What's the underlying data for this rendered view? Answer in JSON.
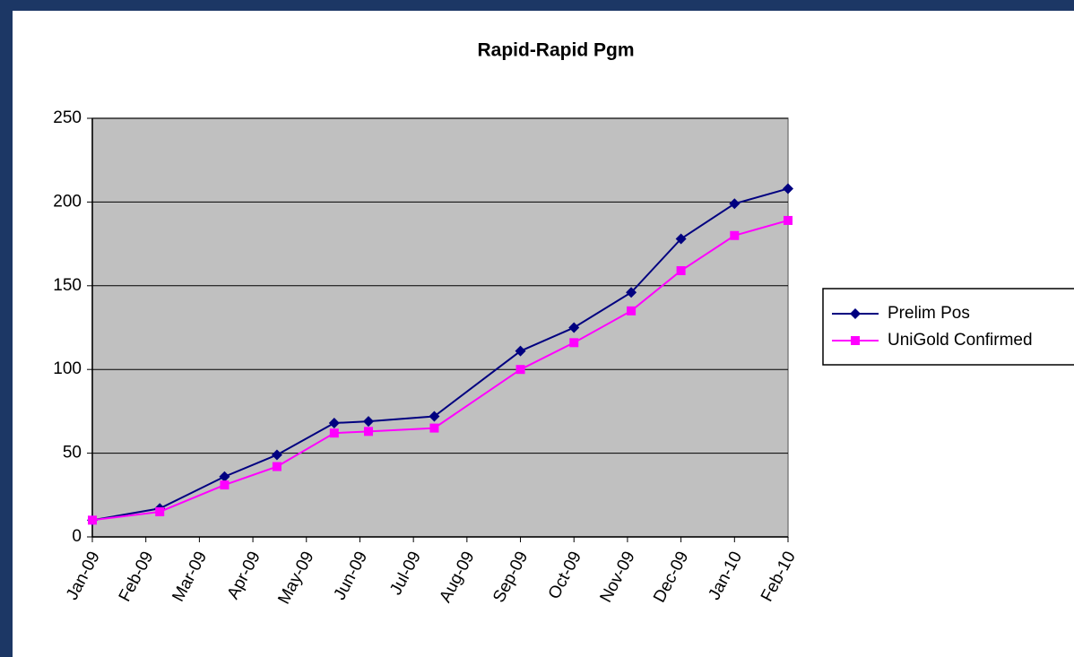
{
  "chart_data": {
    "type": "line",
    "title": "Rapid-Rapid Pgm",
    "x": [
      0,
      1.26,
      2.47,
      3.45,
      4.52,
      5.16,
      6.39,
      8,
      9,
      10.07,
      11,
      12,
      13
    ],
    "xlim": [
      0,
      13
    ],
    "xticks": [
      {
        "value": 0,
        "label": "Jan-09"
      },
      {
        "value": 1,
        "label": "Feb-09"
      },
      {
        "value": 2,
        "label": "Mar-09"
      },
      {
        "value": 3,
        "label": "Apr-09"
      },
      {
        "value": 4,
        "label": "May-09"
      },
      {
        "value": 5,
        "label": "Jun-09"
      },
      {
        "value": 6,
        "label": "Jul-09"
      },
      {
        "value": 7,
        "label": "Aug-09"
      },
      {
        "value": 8,
        "label": "Sep-09"
      },
      {
        "value": 9,
        "label": "Oct-09"
      },
      {
        "value": 10,
        "label": "Nov-09"
      },
      {
        "value": 11,
        "label": "Dec-09"
      },
      {
        "value": 12,
        "label": "Jan-10"
      },
      {
        "value": 13,
        "label": "Feb-10"
      }
    ],
    "ylim": [
      0,
      250
    ],
    "yticks": [
      0,
      50,
      100,
      150,
      200,
      250
    ],
    "grid": true,
    "legend": "right",
    "series": [
      {
        "name": "Prelim Pos",
        "color": "#000080",
        "marker": "diamond",
        "values": [
          10,
          17,
          36,
          49,
          68,
          69,
          72,
          111,
          125,
          146,
          178,
          199,
          208
        ]
      },
      {
        "name": "UniGold Confirmed",
        "color": "#ff00ff",
        "marker": "square",
        "values": [
          10,
          15,
          31,
          42,
          62,
          63,
          65,
          100,
          116,
          135,
          159,
          180,
          189
        ]
      }
    ]
  }
}
